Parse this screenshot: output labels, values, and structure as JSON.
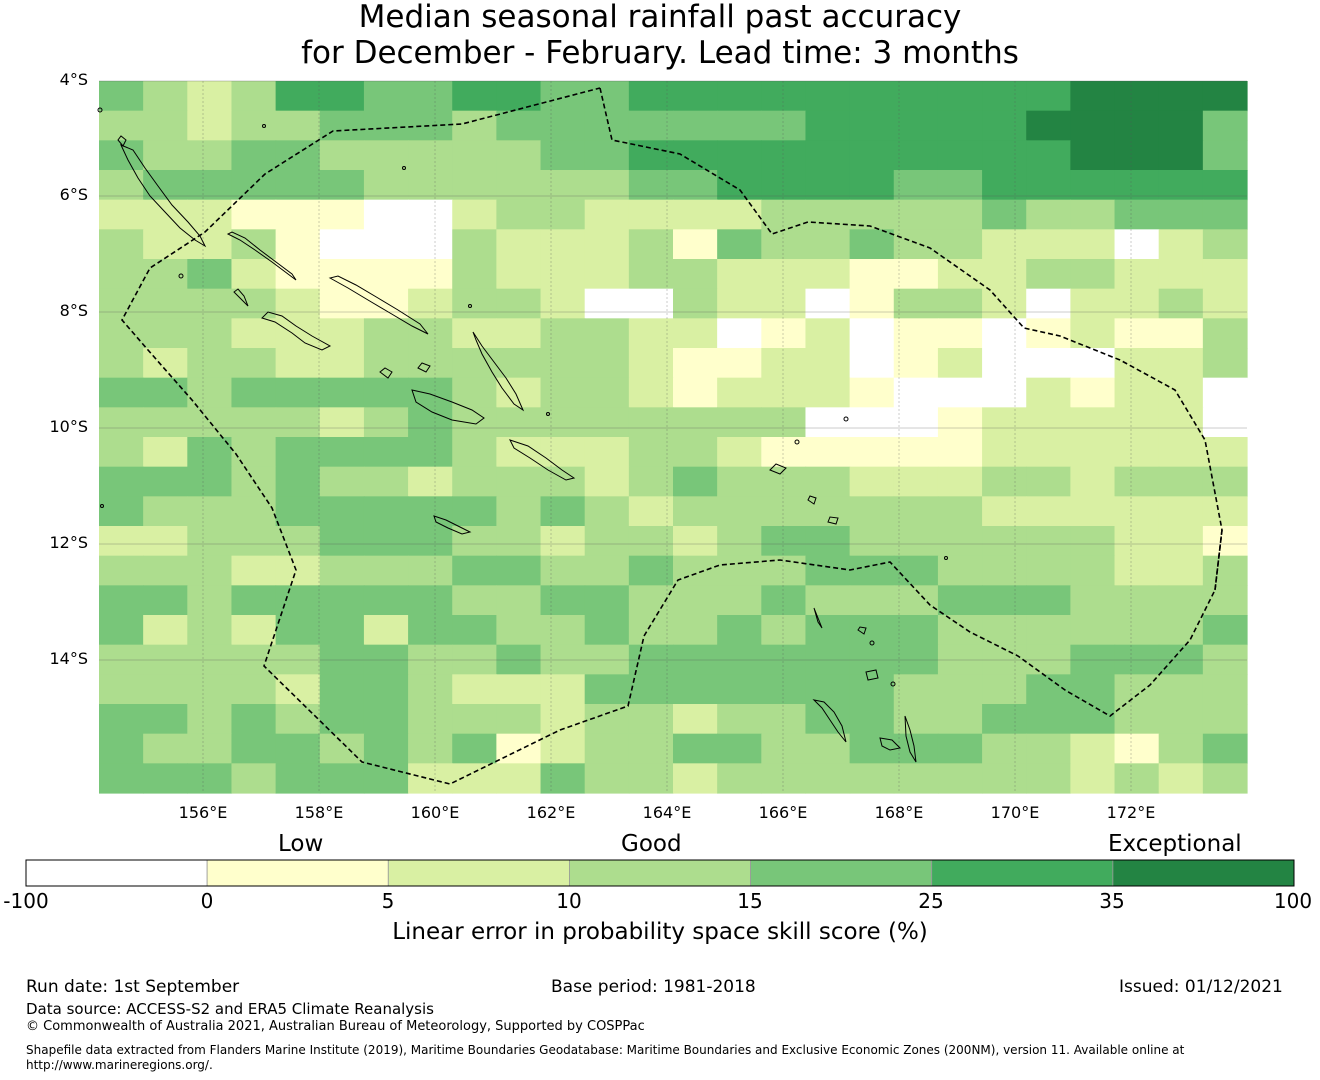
{
  "title_line1": "Median seasonal rainfall past accuracy",
  "title_line2": "for December - February. Lead time: 3 months",
  "map": {
    "lat_labels": [
      "4°S",
      "6°S",
      "8°S",
      "10°S",
      "12°S",
      "14°S"
    ],
    "lon_labels": [
      "156°E",
      "158°E",
      "160°E",
      "162°E",
      "164°E",
      "166°E",
      "168°E",
      "170°E",
      "172°E"
    ],
    "grid_rows": [
      "43235544554455555555556666",
      "33233444344444445555566664",
      "43344333334455555555556664",
      "34444433333344555544555555",
      "22211100233222233333433444",
      "32231000322231433433222023",
      "33421111322233222112233222",
      "33332112332003220133202232",
      "33322233223322012011012113",
      "32332233333321122012000223",
      "44344444323321222100021220",
      "33333234333333330001222220",
      "32434444322233211111222222",
      "44434332333234333222332333",
      "43334444434323333333222222",
      "22333444332332344333333221",
      "33322333443343334443333223",
      "44344444334433343334443333",
      "42324424433433434443333334",
      "33333443343344444443334443",
      "33332443222444444433344333",
      "44343443332332334433444333",
      "43344343412334433444332134",
      "44434442224332333333332323"
    ],
    "legend": {
      "categories": [
        "Low",
        "Good",
        "Exceptional"
      ],
      "ticks": [
        "-100",
        "0",
        "5",
        "10",
        "15",
        "25",
        "35",
        "100"
      ],
      "colors": [
        "#ffffff",
        "#ffffcc",
        "#d9f0a3",
        "#addd8e",
        "#78c679",
        "#41ab5d",
        "#238443"
      ],
      "axis_title": "Linear error in probability space skill score (%)"
    }
  },
  "footer": {
    "run_date": "Run date: 1st September",
    "base_period": "Base period: 1981-2018",
    "issued": "Issued: 01/12/2021",
    "data_source": "Data source: ACCESS-S2 and ERA5 Climate Reanalysis",
    "copyright": "© Commonwealth of Australia 2021, Australian Bureau of Meteorology, Supported by COSPPac",
    "shapefile_line1": "Shapefile data extracted from Flanders Marine Institute (2019), Maritime Boundaries Geodatabase: Maritime Boundaries and Exclusive Economic Zones (200NM), version 11. Available online at",
    "shapefile_line2": "http://www.marineregions.org/."
  }
}
